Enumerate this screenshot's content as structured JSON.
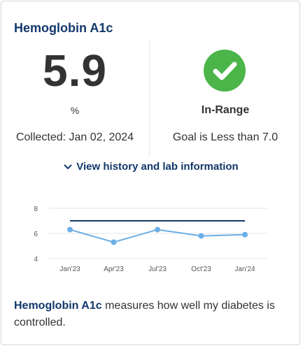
{
  "card": {
    "title": "Hemoglobin A1c",
    "value": "5.9",
    "unit": "%",
    "collected": "Collected: Jan 02, 2024",
    "status": "In-Range",
    "goal": "Goal is Less than 7.0",
    "history_link": "View history and lab information",
    "desc_term": "Hemoglobin A1c",
    "desc_text": " measures how well my diabetes is controlled."
  },
  "colors": {
    "title": "#12386b",
    "ok": "#4bb54a",
    "series": "#6aaee6",
    "goal_line": "#12386b"
  },
  "chart_data": {
    "type": "line",
    "categories": [
      "Jan'23",
      "Apr'23",
      "Jul'23",
      "Oct'23",
      "Jan'24"
    ],
    "yticks": [
      4,
      6,
      8
    ],
    "ylim": [
      4,
      8
    ],
    "series": [
      {
        "values": [
          6.3,
          5.3,
          6.3,
          5.8,
          5.9
        ]
      }
    ],
    "goal_line": 7.0,
    "grid": true
  }
}
